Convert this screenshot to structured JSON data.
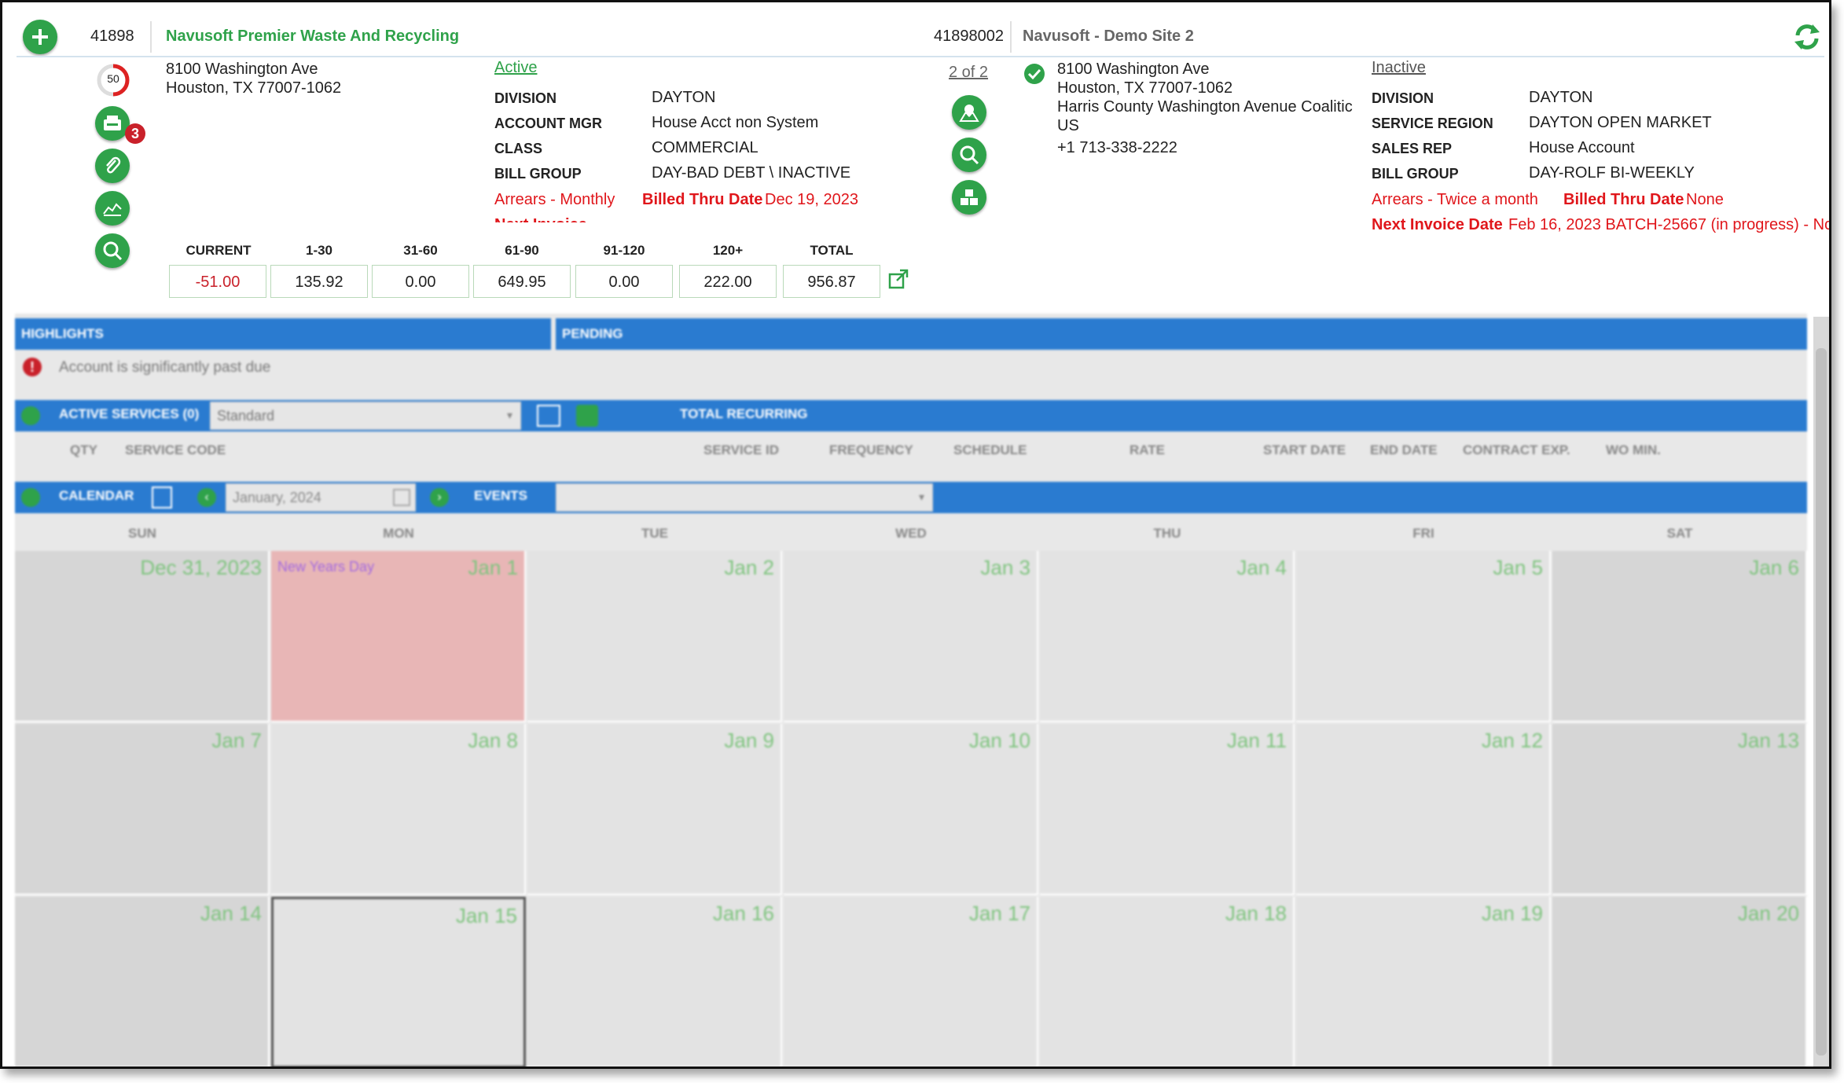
{
  "header": {
    "account_id": "41898",
    "account_name": "Navusoft Premier Waste And Recycling",
    "site_id": "41898002",
    "site_name": "Navusoft - Demo Site 2"
  },
  "account": {
    "score": "50",
    "badge_count": "3",
    "address_line1": "8100 Washington Ave",
    "address_line2": "Houston, TX 77007-1062",
    "status": "Active",
    "fields": [
      {
        "label": "DIVISION",
        "value": "DAYTON"
      },
      {
        "label": "ACCOUNT MGR",
        "value": "House Acct non System"
      },
      {
        "label": "CLASS",
        "value": "COMMERCIAL"
      },
      {
        "label": "BILL GROUP",
        "value": "DAY-BAD DEBT \\ INACTIVE"
      }
    ],
    "arrears": "Arrears - Monthly",
    "billed_thru_label": "Billed Thru Date",
    "billed_thru_value": "Dec 19, 2023",
    "next_invoice_partial": "Next Invoice Date"
  },
  "aging": {
    "headers": [
      "CURRENT",
      "1-30",
      "31-60",
      "61-90",
      "91-120",
      "120+",
      "TOTAL"
    ],
    "values": [
      "-51.00",
      "135.92",
      "0.00",
      "649.95",
      "0.00",
      "222.00",
      "956.87"
    ]
  },
  "site": {
    "pager": "2 of 2",
    "address_line1": "8100 Washington Ave",
    "address_line2": "Houston, TX 77007-1062",
    "address_line3": "Harris County Washington Avenue Coalitic",
    "address_line4": "US",
    "phone": "+1 713-338-2222",
    "status": "Inactive",
    "fields": [
      {
        "label": "DIVISION",
        "value": "DAYTON"
      },
      {
        "label": "SERVICE REGION",
        "value": "DAYTON OPEN MARKET"
      },
      {
        "label": "SALES REP",
        "value": "House Account"
      },
      {
        "label": "BILL GROUP",
        "value": "DAY-ROLF BI-WEEKLY"
      }
    ],
    "arrears": "Arrears - Twice a month",
    "billed_thru_label": "Billed Thru Date",
    "billed_thru_value": "None",
    "next_invoice_label": "Next Invoice Date",
    "next_invoice_value": "Feb 16, 2023 BATCH-25667 (in progress) - Nc"
  },
  "panels": {
    "highlights": "HIGHLIGHTS",
    "pending": "PENDING",
    "highlight_msg": "Account is significantly past due",
    "active_services": "ACTIVE SERVICES (0)",
    "services_filter": "Standard",
    "total_recurring": "TOTAL RECURRING",
    "service_columns": [
      "QTY",
      "SERVICE CODE",
      "SERVICE ID",
      "FREQUENCY",
      "SCHEDULE",
      "RATE",
      "START DATE",
      "END DATE",
      "CONTRACT EXP.",
      "WO MIN."
    ],
    "calendar": "CALENDAR",
    "calendar_month": "January, 2024",
    "events": "EVENTS"
  },
  "calendar": {
    "days": [
      "SUN",
      "MON",
      "TUE",
      "WED",
      "THU",
      "FRI",
      "SAT"
    ],
    "weeks": [
      [
        "Dec 31, 2023",
        "Jan 1",
        "Jan 2",
        "Jan 3",
        "Jan 4",
        "Jan 5",
        "Jan 6"
      ],
      [
        "Jan 7",
        "Jan 8",
        "Jan 9",
        "Jan 10",
        "Jan 11",
        "Jan 12",
        "Jan 13"
      ],
      [
        "Jan 14",
        "Jan 15",
        "Jan 16",
        "Jan 17",
        "Jan 18",
        "Jan 19",
        "Jan 20"
      ]
    ],
    "holiday_name": "New Years Day"
  },
  "colors": {
    "green": "#2fa24a",
    "red": "#e0161b",
    "blue_bar": "#2a7bd0",
    "holiday": "#e8b6b6"
  }
}
